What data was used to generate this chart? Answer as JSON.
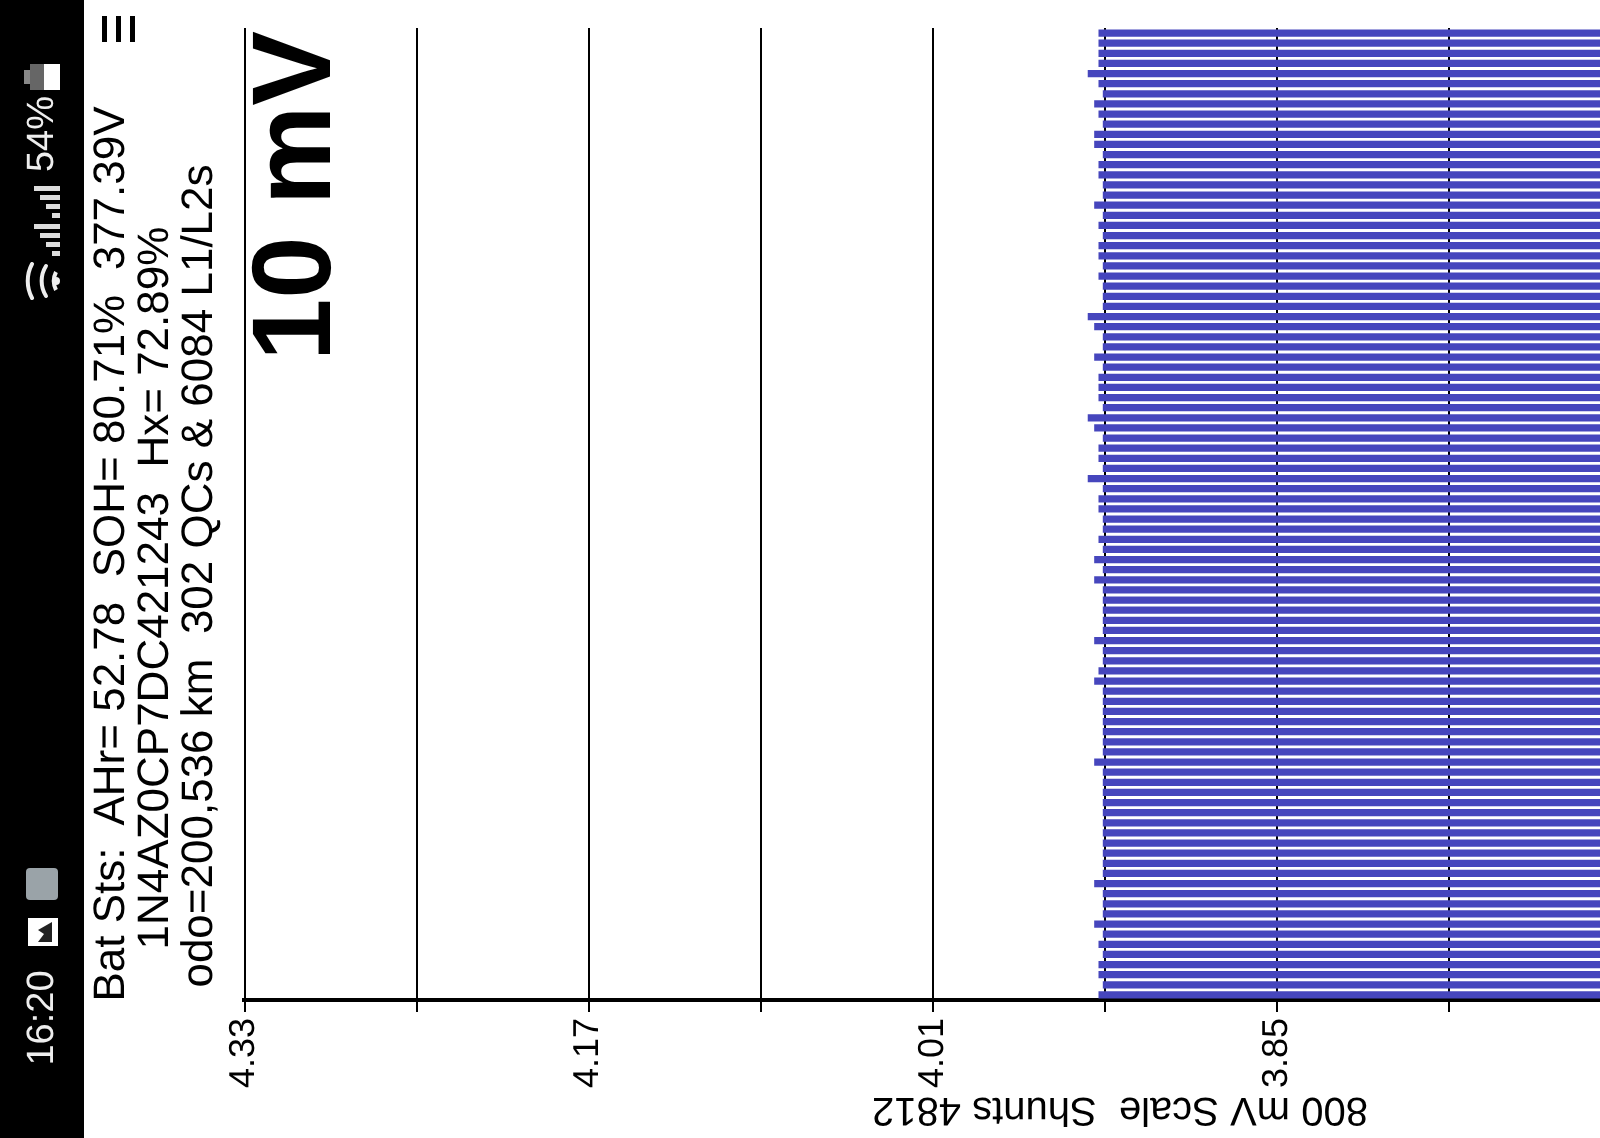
{
  "chart_data": {
    "type": "bar",
    "orientation": "horizontal",
    "categories": [
      null,
      null,
      null,
      null,
      null,
      null,
      null,
      null,
      null,
      null,
      null,
      null,
      null,
      null,
      null,
      null,
      null,
      null,
      null,
      null,
      null,
      null,
      null,
      null,
      null,
      null,
      null,
      null,
      null,
      null,
      null,
      null,
      null,
      null,
      null,
      null,
      null,
      null,
      null,
      null,
      null,
      null,
      null,
      null,
      null,
      null,
      null,
      null,
      null,
      null,
      null,
      null,
      null,
      null,
      null,
      null,
      null,
      null,
      null,
      null,
      null,
      null,
      null,
      null,
      null,
      null,
      null,
      null,
      null,
      null,
      null,
      null,
      null,
      null,
      null,
      null,
      null,
      null,
      null,
      null,
      null,
      null,
      null,
      null,
      null,
      null,
      null,
      null,
      null,
      null,
      null,
      null,
      null,
      null,
      null,
      null
    ],
    "values": [
      3.933,
      3.933,
      3.933,
      3.933,
      3.938,
      3.933,
      3.931,
      3.935,
      3.933,
      3.931,
      3.935,
      3.935,
      3.931,
      3.933,
      3.933,
      3.931,
      3.931,
      3.935,
      3.931,
      3.933,
      3.931,
      3.933,
      3.933,
      3.931,
      3.933,
      3.931,
      3.931,
      3.931,
      3.938,
      3.935,
      3.931,
      3.931,
      3.935,
      3.931,
      3.933,
      3.933,
      3.933,
      3.931,
      3.938,
      3.935,
      3.931,
      3.933,
      3.933,
      3.931,
      3.938,
      3.931,
      3.933,
      3.933,
      3.931,
      3.931,
      3.933,
      3.931,
      3.935,
      3.931,
      3.935,
      3.931,
      3.931,
      3.931,
      3.931,
      3.931,
      3.935,
      3.931,
      3.931,
      3.933,
      3.935,
      3.931,
      3.931,
      3.931,
      3.931,
      3.931,
      3.931,
      3.931,
      3.935,
      3.931,
      3.931,
      3.931,
      3.931,
      3.931,
      3.931,
      3.931,
      3.931,
      3.931,
      3.931,
      3.931,
      3.935,
      3.931,
      3.931,
      3.931,
      3.935,
      3.931,
      3.933,
      3.931,
      3.933,
      3.933,
      3.931,
      3.933
    ],
    "color": "#4646bd",
    "xlim": [
      4.33,
      3.7
    ],
    "xticks": [
      4.33,
      {
        "value": 4.25,
        "label": null
      },
      4.17,
      {
        "value": 4.09,
        "label": null
      },
      4.01,
      {
        "value": 3.93,
        "label": null
      },
      3.85,
      {
        "value": 3.77,
        "label": null
      }
    ],
    "xlabel": "800 mV Scale  Shunts 4812",
    "grid": "x",
    "annotations": [
      "Bat Sts:  AHr= 52.78  SOH= 80.71%  377.39V",
      "1N4AZ0CP7DC421243  Hx= 72.89%",
      "odo=200,536 km  302 QCs & 6084 L1/L2s",
      "10 mV",
      "16:20",
      "54%"
    ]
  }
}
